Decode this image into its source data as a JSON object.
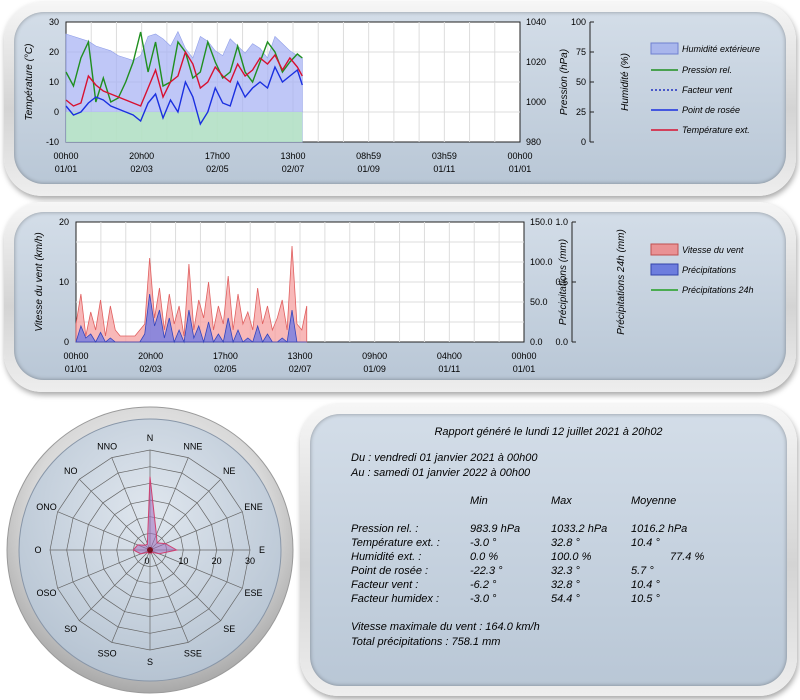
{
  "colors": {
    "humidity": "#8aa0f0",
    "pressure": "#1f8f1f",
    "dewpoint": "#1a2fe0",
    "temp": "#d81030",
    "rain": "#5566dd",
    "wind": "#f08080",
    "rain24": "#22a022"
  },
  "chart_data": [
    {
      "type": "line",
      "axes": {
        "left": {
          "label": "Température (°C)",
          "ticks": [
            "30",
            "20",
            "10",
            "0",
            "-10"
          ],
          "range": [
            -10,
            30
          ]
        },
        "right1": {
          "label": "Pression (hPa)",
          "ticks": [
            "1040",
            "1020",
            "1000",
            "980"
          ],
          "range": [
            980,
            1040
          ]
        },
        "right2": {
          "label": "Humidité (%)",
          "ticks": [
            "100",
            "75",
            "50",
            "25",
            "0"
          ],
          "range": [
            0,
            100
          ]
        },
        "x_ticks": [
          {
            "time": "00h00",
            "date": "01/01"
          },
          {
            "time": "20h00",
            "date": "02/03"
          },
          {
            "time": "17h00",
            "date": "02/05"
          },
          {
            "time": "13h00",
            "date": "02/07"
          },
          {
            "time": "08h59",
            "date": "01/09"
          },
          {
            "time": "03h59",
            "date": "01/11"
          },
          {
            "time": "00h00",
            "date": "01/01"
          }
        ]
      },
      "legend": [
        "Humidité extérieure",
        "Pression rel.",
        "Facteur vent",
        "Point de rosée",
        "Température ext."
      ],
      "series": {
        "x": [
          0,
          6,
          12,
          18,
          24,
          30,
          36,
          42,
          48,
          54,
          60,
          66,
          72,
          78,
          84,
          90,
          96,
          102,
          108,
          114,
          120,
          126,
          132,
          138,
          144,
          150,
          156,
          162,
          168,
          174,
          180,
          186,
          190
        ],
        "humidity": [
          90,
          88,
          86,
          84,
          80,
          78,
          76,
          72,
          70,
          68,
          72,
          88,
          90,
          86,
          80,
          92,
          78,
          70,
          88,
          84,
          76,
          72,
          86,
          80,
          74,
          82,
          78,
          70,
          88,
          82,
          76,
          72,
          70
        ],
        "pressure": [
          1015,
          1008,
          1022,
          1030,
          1000,
          1012,
          1000,
          1002,
          1010,
          1020,
          1035,
          1015,
          1030,
          1008,
          1010,
          1030,
          1025,
          1012,
          1015,
          1030,
          1020,
          1012,
          1015,
          1028,
          1015,
          1010,
          1020,
          1030,
          1025,
          1015,
          1020,
          1024,
          1022
        ],
        "dewpoint": [
          2,
          -1,
          0,
          3,
          5,
          4,
          2,
          1,
          0,
          -1,
          -3,
          3,
          6,
          -2,
          4,
          0,
          10,
          5,
          -4,
          0,
          8,
          3,
          2,
          10,
          5,
          8,
          10,
          8,
          15,
          10,
          12,
          14,
          9
        ],
        "temp": [
          4,
          2,
          3,
          12,
          9,
          7,
          6,
          5,
          4,
          3,
          2,
          8,
          14,
          5,
          10,
          12,
          20,
          16,
          8,
          10,
          15,
          12,
          10,
          16,
          12,
          14,
          18,
          16,
          19,
          14,
          18,
          15,
          12
        ]
      }
    },
    {
      "type": "area",
      "axes": {
        "left": {
          "label": "Vitesse du vent (km/h)",
          "ticks": [
            "20",
            "10",
            "0"
          ],
          "range": [
            0,
            20
          ]
        },
        "right1": {
          "label": "Précipitations (mm)",
          "ticks": [
            "150.0",
            "100.0",
            "50.0",
            "0.0"
          ],
          "range": [
            0,
            150
          ]
        },
        "right2": {
          "label": "Précipitations 24h (mm)",
          "ticks": [
            "1.0",
            "0.5",
            "0.0"
          ],
          "range": [
            0,
            1
          ]
        },
        "x_ticks": [
          {
            "time": "00h00",
            "date": "01/01"
          },
          {
            "time": "20h00",
            "date": "02/03"
          },
          {
            "time": "17h00",
            "date": "02/05"
          },
          {
            "time": "13h00",
            "date": "02/07"
          },
          {
            "time": "09h00",
            "date": "01/09"
          },
          {
            "time": "04h00",
            "date": "01/11"
          },
          {
            "time": "00h00",
            "date": "01/01"
          }
        ]
      },
      "legend": [
        "Vitesse du vent",
        "Précipitations",
        "Précipitations 24h"
      ],
      "series": {
        "x": [
          0,
          4,
          8,
          12,
          16,
          20,
          24,
          28,
          32,
          36,
          40,
          44,
          48,
          52,
          56,
          60,
          64,
          68,
          72,
          76,
          80,
          84,
          88,
          92,
          96,
          100,
          104,
          108,
          112,
          116,
          120,
          124,
          128,
          132,
          136,
          140,
          144,
          148,
          152,
          156,
          160,
          164,
          168,
          172,
          176,
          180,
          184,
          188
        ],
        "wind": [
          3,
          8,
          1,
          5,
          2,
          7,
          1,
          6,
          2,
          1,
          1,
          1,
          1,
          2,
          3,
          14,
          4,
          9,
          2,
          8,
          3,
          6,
          1,
          13,
          2,
          7,
          4,
          10,
          2,
          6,
          3,
          11,
          2,
          8,
          3,
          5,
          2,
          9,
          3,
          6,
          2,
          4,
          7,
          2,
          16,
          3,
          2,
          6
        ],
        "rain": [
          0,
          20,
          5,
          10,
          0,
          12,
          0,
          5,
          0,
          0,
          0,
          0,
          0,
          0,
          10,
          60,
          20,
          40,
          5,
          30,
          0,
          15,
          0,
          40,
          5,
          20,
          0,
          25,
          0,
          10,
          0,
          30,
          0,
          15,
          0,
          5,
          0,
          20,
          0,
          10,
          0,
          0,
          5,
          0,
          40,
          0,
          0,
          0
        ]
      }
    },
    {
      "type": "radar",
      "directions": [
        "N",
        "NNE",
        "NE",
        "ENE",
        "E",
        "ESE",
        "SE",
        "SSE",
        "S",
        "SSO",
        "SO",
        "OSO",
        "O",
        "ONO",
        "NO",
        "NNO"
      ],
      "radial_ticks": [
        "0",
        "10",
        "20",
        "30"
      ],
      "values": [
        22,
        5,
        3,
        5,
        8,
        3,
        1,
        1,
        1,
        1,
        1,
        3,
        5,
        4,
        2,
        2
      ]
    }
  ],
  "report": {
    "title": "Rapport généré le lundi 12 juillet 2021 à 20h02",
    "from": "Du : vendredi 01 janvier 2021 à 00h00",
    "to": "Au : samedi 01 janvier 2022 à 00h00",
    "headers": [
      "Min",
      "Max",
      "Moyenne"
    ],
    "rows": [
      {
        "label": "Pression rel. :",
        "min": "983.9 hPa",
        "max": "1033.2 hPa",
        "avg": "1016.2 hPa"
      },
      {
        "label": "Température ext. :",
        "min": "-3.0 °",
        "max": "32.8 °",
        "avg": "10.4 °"
      },
      {
        "label": "Humidité ext. :",
        "min": "0.0 %",
        "max": "100.0 %",
        "avg": "77.4 %"
      },
      {
        "label": "Point de rosée :",
        "min": "-22.3 °",
        "max": "32.3 °",
        "avg": "5.7 °"
      },
      {
        "label": "Facteur vent :",
        "min": "-6.2 °",
        "max": "32.8 °",
        "avg": "10.4 °"
      },
      {
        "label": "Facteur humidex :",
        "min": "-3.0 °",
        "max": "54.4 °",
        "avg": "10.5 °"
      }
    ],
    "wind_max": "Vitesse maximale du vent : 164.0 km/h",
    "rain_total": "Total précipitations : 758.1 mm"
  }
}
